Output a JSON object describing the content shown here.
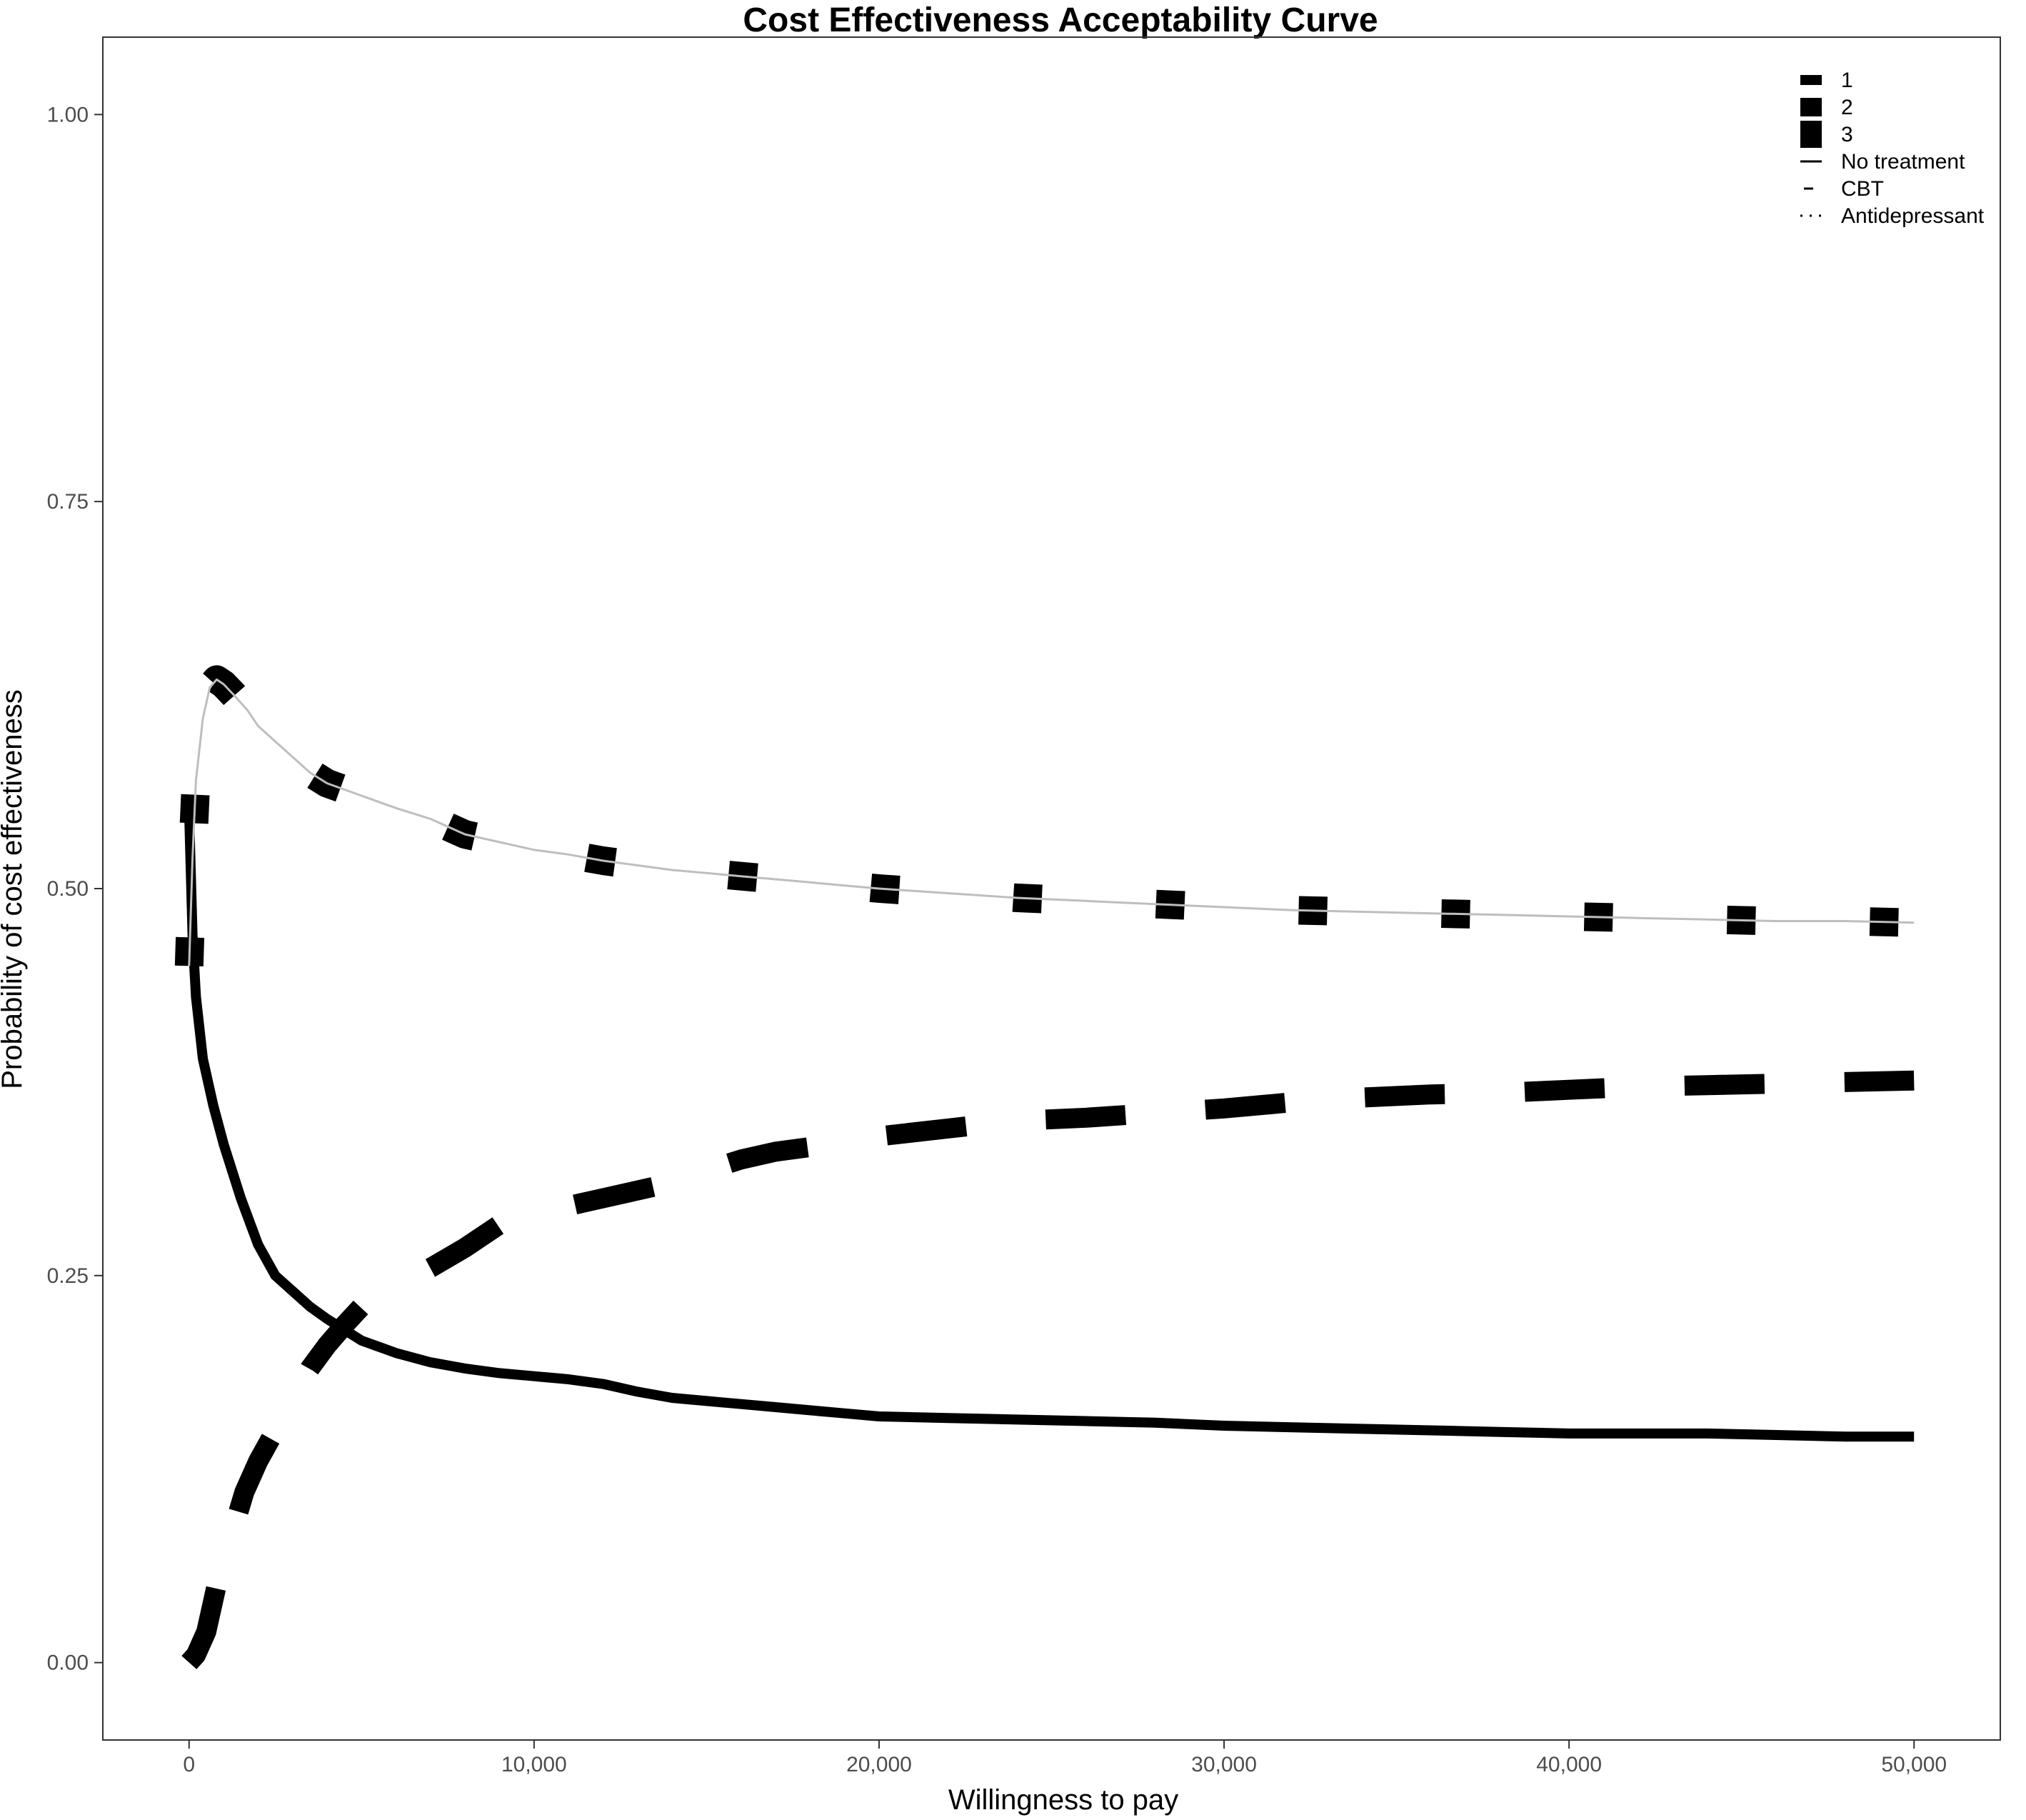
{
  "chart_data": {
    "type": "line",
    "title": "Cost Effectiveness Acceptability Curve",
    "xlabel": "Willingness to pay",
    "ylabel": "Probability of cost effectiveness",
    "xlim": [
      -2500,
      52500
    ],
    "ylim": [
      -0.05,
      1.05
    ],
    "x_ticks": [
      0,
      10000,
      20000,
      30000,
      40000,
      50000
    ],
    "x_tick_labels": [
      "0",
      "10,000",
      "20,000",
      "30,000",
      "40,000",
      "50,000"
    ],
    "y_ticks": [
      0,
      0.25,
      0.5,
      0.75,
      1
    ],
    "y_tick_labels": [
      "0.00",
      "0.25",
      "0.50",
      "0.75",
      "1.00"
    ],
    "grid": false,
    "legend_position": "top-right",
    "legend": {
      "size_entries": [
        {
          "label": "1",
          "height": 14
        },
        {
          "label": "2",
          "height": 26
        },
        {
          "label": "3",
          "height": 38
        }
      ],
      "linetype_entries": [
        {
          "label": "No treatment",
          "style": "solid"
        },
        {
          "label": "CBT",
          "style": "dashed"
        },
        {
          "label": "Antidepressant",
          "style": "dotted"
        }
      ]
    },
    "series": [
      {
        "style": "solid",
        "weight": 14,
        "color": "#000000",
        "x": [
          0,
          100,
          200,
          400,
          700,
          1000,
          1500,
          2000,
          2500,
          3000,
          3500,
          4000,
          4500,
          5000,
          5500,
          6000,
          6500,
          7000,
          8000,
          9000,
          10000,
          11000,
          12000,
          13000,
          14000,
          15000,
          16000,
          17000,
          18000,
          19000,
          20000,
          22000,
          24000,
          26000,
          28000,
          30000,
          32000,
          34000,
          36000,
          38000,
          40000,
          42000,
          44000,
          46000,
          48000,
          50000
        ],
        "y": [
          0.55,
          0.47,
          0.43,
          0.39,
          0.36,
          0.335,
          0.3,
          0.27,
          0.25,
          0.24,
          0.23,
          0.222,
          0.215,
          0.208,
          0.204,
          0.2,
          0.197,
          0.194,
          0.19,
          0.187,
          0.185,
          0.183,
          0.18,
          0.175,
          0.171,
          0.169,
          0.167,
          0.165,
          0.163,
          0.161,
          0.159,
          0.158,
          0.157,
          0.156,
          0.155,
          0.153,
          0.152,
          0.151,
          0.15,
          0.149,
          0.148,
          0.148,
          0.148,
          0.147,
          0.146,
          0.146
        ]
      },
      {
        "style": "dashed",
        "weight": 28,
        "color": "#000000",
        "x": [
          0,
          200,
          500,
          800,
          1200,
          1600,
          2000,
          2500,
          3000,
          3500,
          4000,
          4500,
          5000,
          6000,
          7000,
          8000,
          9000,
          10000,
          11000,
          12000,
          13000,
          14000,
          15000,
          16000,
          17000,
          18000,
          19000,
          20000,
          22000,
          24000,
          26000,
          28000,
          30000,
          32000,
          34000,
          36000,
          38000,
          40000,
          42000,
          44000,
          46000,
          48000,
          50000
        ],
        "y": [
          0,
          0.005,
          0.02,
          0.05,
          0.08,
          0.11,
          0.13,
          0.15,
          0.17,
          0.19,
          0.205,
          0.218,
          0.23,
          0.243,
          0.255,
          0.268,
          0.283,
          0.29,
          0.295,
          0.3,
          0.305,
          0.31,
          0.318,
          0.325,
          0.33,
          0.333,
          0.337,
          0.34,
          0.345,
          0.35,
          0.352,
          0.355,
          0.358,
          0.362,
          0.365,
          0.367,
          0.368,
          0.37,
          0.372,
          0.373,
          0.374,
          0.375,
          0.376
        ]
      },
      {
        "style": "dotted",
        "weight": 40,
        "color": "#000000",
        "x": [
          0,
          100,
          200,
          400,
          600,
          800,
          1000,
          1300,
          1700,
          2000,
          2500,
          3000,
          3500,
          4000,
          5000,
          6000,
          7000,
          8000,
          9000,
          10000,
          11000,
          12000,
          13000,
          14000,
          15000,
          16000,
          17000,
          18000,
          19000,
          20000,
          22000,
          24000,
          26000,
          28000,
          30000,
          32000,
          34000,
          36000,
          38000,
          40000,
          42000,
          44000,
          46000,
          48000,
          50000
        ],
        "y": [
          0.45,
          0.52,
          0.57,
          0.61,
          0.63,
          0.635,
          0.632,
          0.625,
          0.615,
          0.605,
          0.595,
          0.585,
          0.575,
          0.568,
          0.56,
          0.552,
          0.545,
          0.535,
          0.53,
          0.525,
          0.522,
          0.518,
          0.515,
          0.512,
          0.51,
          0.508,
          0.506,
          0.504,
          0.502,
          0.5,
          0.497,
          0.494,
          0.492,
          0.49,
          0.488,
          0.486,
          0.485,
          0.484,
          0.483,
          0.482,
          0.481,
          0.48,
          0.479,
          0.479,
          0.478
        ]
      },
      {
        "style": "solid",
        "weight": 3,
        "color": "#bebebe",
        "x": [
          0,
          100,
          200,
          400,
          600,
          800,
          1000,
          1300,
          1700,
          2000,
          2500,
          3000,
          3500,
          4000,
          5000,
          6000,
          7000,
          8000,
          9000,
          10000,
          11000,
          12000,
          13000,
          14000,
          15000,
          16000,
          17000,
          18000,
          19000,
          20000,
          22000,
          24000,
          26000,
          28000,
          30000,
          32000,
          34000,
          36000,
          38000,
          40000,
          42000,
          44000,
          46000,
          48000,
          50000
        ],
        "y": [
          0.45,
          0.52,
          0.57,
          0.61,
          0.63,
          0.635,
          0.632,
          0.625,
          0.615,
          0.605,
          0.595,
          0.585,
          0.575,
          0.568,
          0.56,
          0.552,
          0.545,
          0.535,
          0.53,
          0.525,
          0.522,
          0.518,
          0.515,
          0.512,
          0.51,
          0.508,
          0.506,
          0.504,
          0.502,
          0.5,
          0.497,
          0.494,
          0.492,
          0.49,
          0.488,
          0.486,
          0.485,
          0.484,
          0.483,
          0.482,
          0.481,
          0.48,
          0.479,
          0.479,
          0.478
        ]
      }
    ]
  }
}
